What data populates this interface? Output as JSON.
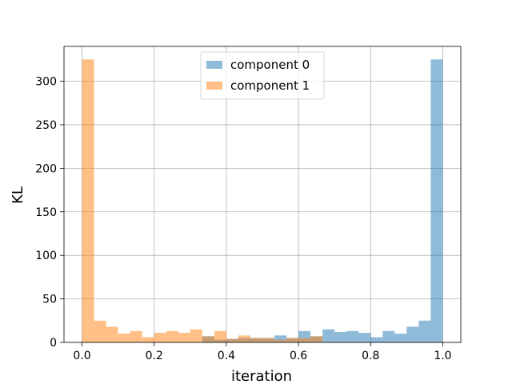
{
  "chart_data": {
    "type": "bar",
    "title": "",
    "xlabel": "iteration",
    "ylabel": "KL",
    "xlim": [
      -0.05,
      1.05
    ],
    "ylim": [
      0,
      340
    ],
    "xticks": [
      0.0,
      0.2,
      0.4,
      0.6,
      0.8,
      1.0
    ],
    "xtick_labels": [
      "0.0",
      "0.2",
      "0.4",
      "0.6",
      "0.8",
      "1.0"
    ],
    "yticks": [
      0,
      50,
      100,
      150,
      200,
      250,
      300
    ],
    "ytick_labels": [
      "0",
      "50",
      "100",
      "150",
      "200",
      "250",
      "300"
    ],
    "grid": true,
    "legend": "top-center",
    "bin_edges": [
      0.0,
      0.0333,
      0.0667,
      0.1,
      0.1333,
      0.1667,
      0.2,
      0.2333,
      0.2667,
      0.3,
      0.3333,
      0.3667,
      0.4,
      0.4333,
      0.4667,
      0.5,
      0.5333,
      0.5667,
      0.6,
      0.6333,
      0.6667,
      0.7,
      0.7333,
      0.7667,
      0.8,
      0.8333,
      0.8667,
      0.9,
      0.9333,
      0.9667,
      1.0
    ],
    "series": [
      {
        "name": "component 0",
        "color": "#1f77b4",
        "alpha": 0.5,
        "values": [
          0,
          0,
          0,
          0,
          0,
          0,
          0,
          0,
          0,
          0,
          7,
          3,
          4,
          5,
          5,
          5,
          8,
          5,
          13,
          7,
          15,
          12,
          13,
          11,
          6,
          13,
          10,
          18,
          25,
          325
        ]
      },
      {
        "name": "component 1",
        "color": "#ff7f0e",
        "alpha": 0.5,
        "values": [
          325,
          25,
          18,
          10,
          13,
          6,
          11,
          13,
          11,
          15,
          7,
          13,
          4,
          8,
          5,
          5,
          3,
          5,
          5,
          7,
          0,
          0,
          0,
          0,
          0,
          0,
          0,
          0,
          0,
          0
        ]
      }
    ]
  }
}
